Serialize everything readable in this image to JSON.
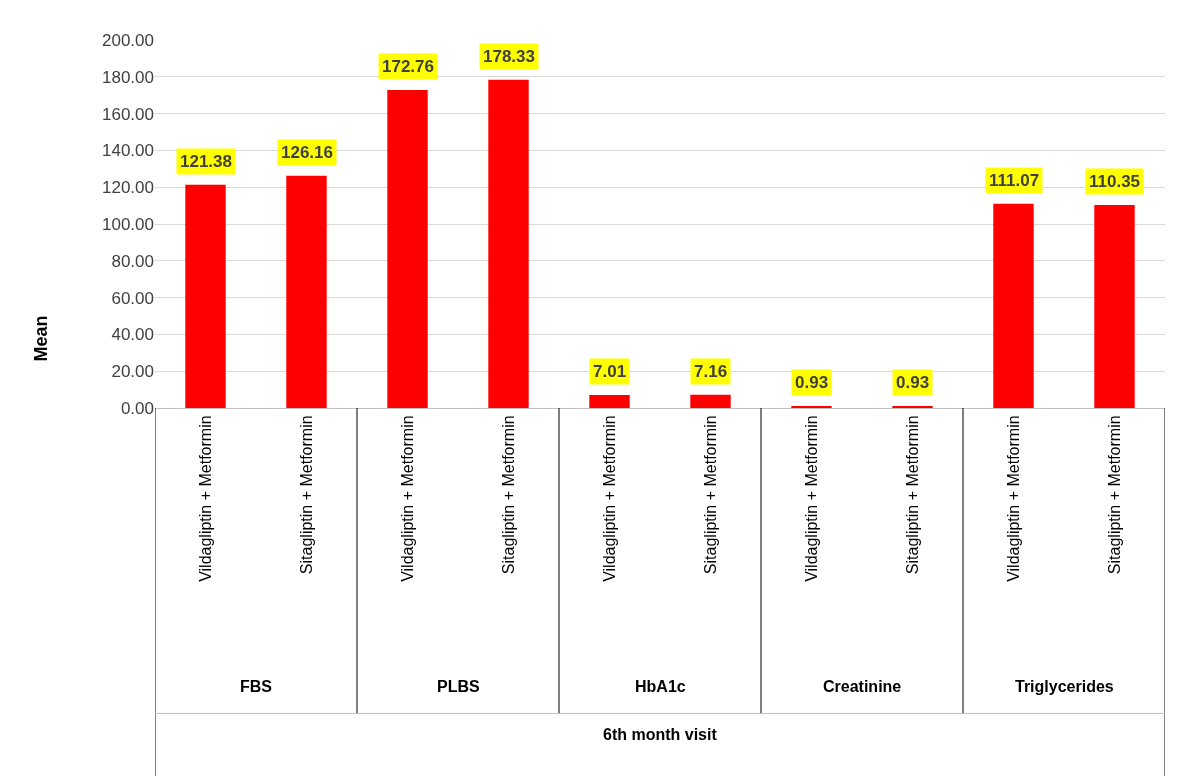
{
  "chart_data": {
    "type": "bar",
    "categories": [
      "Vildagliptin + Metformin",
      "Sitagliptin + Metformin",
      "Vildagliptin + Metformin",
      "Sitagliptin + Metformin",
      "Vildagliptin + Metformin",
      "Sitagliptin + Metformin",
      "Vildagliptin + Metformin",
      "Sitagliptin + Metformin",
      "Vildagliptin + Metformin",
      "Sitagliptin + Metformin"
    ],
    "values": [
      121.38,
      126.16,
      172.76,
      178.33,
      7.01,
      7.16,
      0.93,
      0.93,
      111.07,
      110.35
    ],
    "value_labels": [
      "121.38",
      "126.16",
      "172.76",
      "178.33",
      "7.01",
      "7.16",
      "0.93",
      "0.93",
      "111.07",
      "110.35"
    ],
    "color": "#ff0000",
    "ylabel": "Mean",
    "annotations": [
      "FBS",
      "PLBS",
      "HbA1c",
      "Creatinine",
      "Triglycerides",
      "6th month visit"
    ],
    "ylim": [
      0,
      200
    ],
    "yticks": [
      {
        "value": 0,
        "label": "0.00"
      },
      {
        "value": 20,
        "label": "20.00"
      },
      {
        "value": 40,
        "label": "40.00"
      },
      {
        "value": 60,
        "label": "60.00"
      },
      {
        "value": 80,
        "label": "80.00"
      },
      {
        "value": 100,
        "label": "100.00"
      },
      {
        "value": 120,
        "label": "120.00"
      },
      {
        "value": 140,
        "label": "140.00"
      },
      {
        "value": 160,
        "label": "160.00"
      },
      {
        "value": 180,
        "label": "180.00"
      },
      {
        "value": 200,
        "label": "200.00"
      }
    ],
    "grid": "y",
    "legend": false
  }
}
